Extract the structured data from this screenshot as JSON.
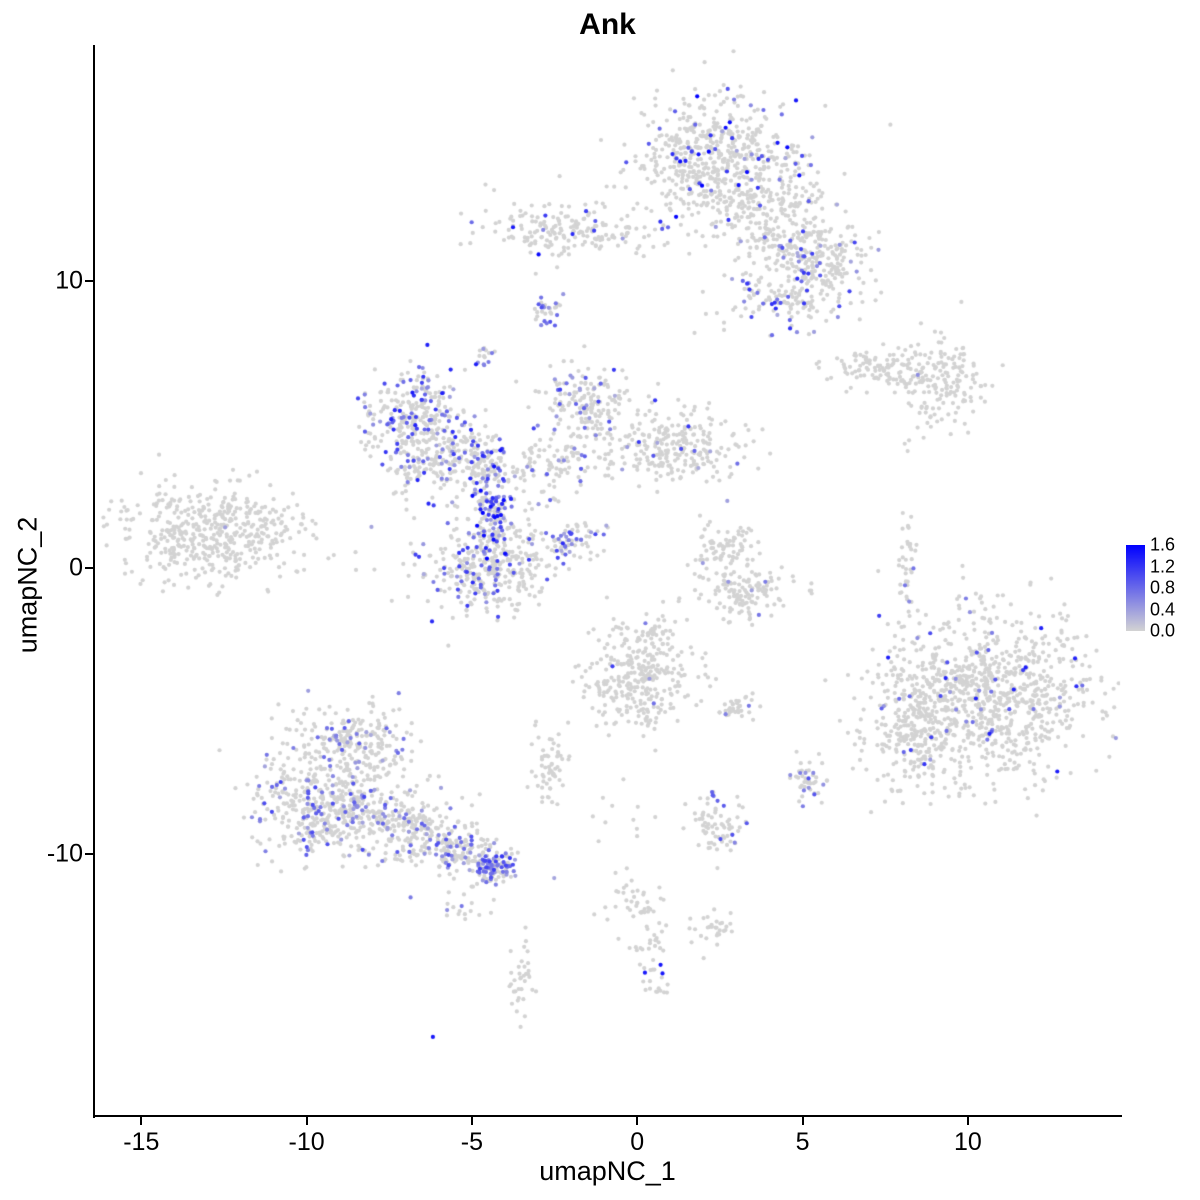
{
  "chart_data": {
    "type": "scatter",
    "title": "Ank",
    "xlabel": "umapNC_1",
    "ylabel": "umapNC_2",
    "xlim": [
      -16.4,
      14.6
    ],
    "ylim": [
      -19.1,
      18.25
    ],
    "xticks": [
      -15,
      -10,
      -5,
      0,
      5,
      10
    ],
    "yticks": [
      -10,
      0,
      10
    ],
    "grid": false,
    "legend_position": "right",
    "color_scale": {
      "low": "#D3D3D3",
      "high": "#0000FF",
      "range": [
        0,
        1.6
      ],
      "ticks": [
        {
          "label": "1.6",
          "value": 1.6
        },
        {
          "label": "1.2",
          "value": 1.2
        },
        {
          "label": "0.8",
          "value": 0.8
        },
        {
          "label": "0.4",
          "value": 0.4
        },
        {
          "label": "0.0",
          "value": 0.0
        }
      ]
    },
    "clusters": [
      {
        "name": "top-main",
        "cx": 2.3,
        "cy": 14.3,
        "sx": 1.25,
        "sy": 1.1,
        "n": 550,
        "frac": 0.09,
        "vmin": 0.3,
        "vmax": 1.6
      },
      {
        "name": "top-arm",
        "cx": 4.2,
        "cy": 12.2,
        "sx": 1.3,
        "sy": 0.9,
        "n": 300,
        "frac": 0.07,
        "vmin": 0.3,
        "vmax": 1.2,
        "rot": -30
      },
      {
        "name": "top-arm2",
        "cx": 5.4,
        "cy": 10.6,
        "sx": 0.9,
        "sy": 0.6,
        "n": 160,
        "frac": 0.12,
        "vmin": 0.3,
        "vmax": 1.2
      },
      {
        "name": "top-lower",
        "cx": 4.6,
        "cy": 9.4,
        "sx": 1.1,
        "sy": 0.5,
        "n": 130,
        "frac": 0.15,
        "vmin": 0.3,
        "vmax": 1.3
      },
      {
        "name": "topleft-small",
        "cx": -2.3,
        "cy": 11.9,
        "sx": 1.1,
        "sy": 0.55,
        "n": 160,
        "frac": 0.05,
        "vmin": 0.5,
        "vmax": 1.6
      },
      {
        "name": "trail-top",
        "cx": -0.3,
        "cy": 11.6,
        "sx": 0.9,
        "sy": 0.3,
        "n": 40,
        "frac": 0.02,
        "vmin": 0.3,
        "vmax": 0.8
      },
      {
        "name": "dot-c",
        "cx": -2.75,
        "cy": 9.0,
        "sx": 0.22,
        "sy": 0.25,
        "n": 30,
        "frac": 0.5,
        "vmin": 0.4,
        "vmax": 1.0
      },
      {
        "name": "dot-d",
        "cx": -4.6,
        "cy": 7.4,
        "sx": 0.18,
        "sy": 0.22,
        "n": 14,
        "frac": 0.4,
        "vmin": 0.4,
        "vmax": 0.9
      },
      {
        "name": "right-elong1",
        "cx": 7.6,
        "cy": 6.9,
        "sx": 1.0,
        "sy": 0.35,
        "n": 130,
        "frac": 0.008,
        "vmin": 0.3,
        "vmax": 0.6,
        "rot": -8
      },
      {
        "name": "right-elong2",
        "cx": 9.3,
        "cy": 6.4,
        "sx": 0.65,
        "sy": 0.75,
        "n": 140,
        "frac": 0.008,
        "vmin": 0.3,
        "vmax": 0.6
      },
      {
        "name": "mid-f1",
        "cx": -6.8,
        "cy": 5.5,
        "sx": 0.8,
        "sy": 0.75,
        "n": 220,
        "frac": 0.22,
        "vmin": 0.3,
        "vmax": 1.4
      },
      {
        "name": "mid-f2",
        "cx": -6.3,
        "cy": 3.9,
        "sx": 0.8,
        "sy": 0.7,
        "n": 200,
        "frac": 0.15,
        "vmin": 0.3,
        "vmax": 1.2
      },
      {
        "name": "mid-f3",
        "cx": -4.9,
        "cy": 3.8,
        "sx": 0.55,
        "sy": 0.5,
        "n": 110,
        "frac": 0.3,
        "vmin": 0.3,
        "vmax": 1.3
      },
      {
        "name": "mid-streak",
        "cx": -4.45,
        "cy": 1.9,
        "sx": 0.28,
        "sy": 0.9,
        "n": 160,
        "frac": 0.5,
        "vmin": 0.4,
        "vmax": 1.6
      },
      {
        "name": "mid-blob",
        "cx": -4.4,
        "cy": 0.1,
        "sx": 1.1,
        "sy": 0.85,
        "n": 380,
        "frac": 0.18,
        "vmin": 0.3,
        "vmax": 1.3
      },
      {
        "name": "mid-f6",
        "cx": -1.5,
        "cy": 5.7,
        "sx": 0.75,
        "sy": 0.7,
        "n": 170,
        "frac": 0.12,
        "vmin": 0.3,
        "vmax": 1.2
      },
      {
        "name": "mid-bridge",
        "cx": -2.4,
        "cy": 3.6,
        "sx": 0.9,
        "sy": 0.5,
        "n": 110,
        "frac": 0.12,
        "vmin": 0.3,
        "vmax": 1.0,
        "rot": 20
      },
      {
        "name": "mid-f8",
        "cx": 1.2,
        "cy": 4.2,
        "sx": 1.1,
        "sy": 0.65,
        "n": 260,
        "frac": 0.05,
        "vmin": 0.3,
        "vmax": 1.2
      },
      {
        "name": "mid-streak2",
        "cx": -2.0,
        "cy": 1.0,
        "sx": 0.45,
        "sy": 0.3,
        "n": 55,
        "frac": 0.4,
        "vmin": 0.3,
        "vmax": 1.1,
        "rot": 40
      },
      {
        "name": "left-gray",
        "cx": -12.9,
        "cy": 1.2,
        "sx": 1.5,
        "sy": 0.85,
        "n": 480,
        "frac": 0.004,
        "vmin": 0.3,
        "vmax": 0.6
      },
      {
        "name": "center-cresc1",
        "cx": 2.8,
        "cy": 0.7,
        "sx": 0.55,
        "sy": 0.45,
        "n": 80,
        "frac": 0.01,
        "vmin": 0.3,
        "vmax": 0.6
      },
      {
        "name": "center-cresc2",
        "cx": 3.4,
        "cy": -0.9,
        "sx": 0.75,
        "sy": 0.5,
        "n": 130,
        "frac": 0.02,
        "vmin": 0.3,
        "vmax": 0.7
      },
      {
        "name": "vert-small",
        "cx": 8.15,
        "cy": -0.1,
        "sx": 0.13,
        "sy": 0.85,
        "n": 40,
        "frac": 0.05,
        "vmin": 0.4,
        "vmax": 0.9
      },
      {
        "name": "right-big",
        "cx": 10.6,
        "cy": -4.5,
        "sx": 1.55,
        "sy": 1.45,
        "n": 950,
        "frac": 0.045,
        "vmin": 0.4,
        "vmax": 1.5
      },
      {
        "name": "right-big-lobe",
        "cx": 8.4,
        "cy": -5.6,
        "sx": 0.7,
        "sy": 1.1,
        "n": 220,
        "frac": 0.02,
        "vmin": 0.3,
        "vmax": 0.9
      },
      {
        "name": "center-mid",
        "cx": 0.0,
        "cy": -3.9,
        "sx": 0.85,
        "sy": 0.95,
        "n": 300,
        "frac": 0.015,
        "vmin": 0.4,
        "vmax": 1.2
      },
      {
        "name": "center-mid-tail",
        "cx": 0.6,
        "cy": -2.5,
        "sx": 0.3,
        "sy": 0.5,
        "n": 40,
        "frac": 0.02,
        "vmin": 0.3,
        "vmax": 0.7
      },
      {
        "name": "pair-small",
        "cx": 2.9,
        "cy": -4.9,
        "sx": 0.3,
        "sy": 0.25,
        "n": 35,
        "frac": 0.08,
        "vmin": 0.4,
        "vmax": 0.9
      },
      {
        "name": "bl-top",
        "cx": -8.6,
        "cy": -6.1,
        "sx": 1.0,
        "sy": 0.6,
        "n": 240,
        "frac": 0.15,
        "vmin": 0.3,
        "vmax": 1.0
      },
      {
        "name": "bl-main",
        "cx": -9.4,
        "cy": -8.4,
        "sx": 1.1,
        "sy": 0.85,
        "n": 480,
        "frac": 0.17,
        "vmin": 0.3,
        "vmax": 1.1
      },
      {
        "name": "bl-east",
        "cx": -6.6,
        "cy": -9.2,
        "sx": 1.0,
        "sy": 0.6,
        "n": 260,
        "frac": 0.12,
        "vmin": 0.3,
        "vmax": 1.0,
        "rot": -20
      },
      {
        "name": "bl-arm",
        "cx": -4.8,
        "cy": -10.2,
        "sx": 0.7,
        "sy": 0.35,
        "n": 140,
        "frac": 0.3,
        "vmin": 0.3,
        "vmax": 1.1,
        "rot": -25
      },
      {
        "name": "bl-hotspot",
        "cx": -4.25,
        "cy": -10.4,
        "sx": 0.25,
        "sy": 0.2,
        "n": 50,
        "frac": 0.75,
        "vmin": 0.4,
        "vmax": 1.2
      },
      {
        "name": "bl-below",
        "cx": -5.3,
        "cy": -11.8,
        "sx": 0.5,
        "sy": 0.35,
        "n": 18,
        "frac": 0.05,
        "vmin": 0.3,
        "vmax": 0.8
      },
      {
        "name": "n-small",
        "cx": -2.6,
        "cy": -7.0,
        "sx": 0.3,
        "sy": 0.6,
        "n": 60,
        "frac": 0.01,
        "vmin": 0.3,
        "vmax": 0.6
      },
      {
        "name": "o-small",
        "cx": 5.1,
        "cy": -7.4,
        "sx": 0.25,
        "sy": 0.5,
        "n": 45,
        "frac": 0.25,
        "vmin": 0.4,
        "vmax": 1.0
      },
      {
        "name": "p-small",
        "cx": 2.4,
        "cy": -9.0,
        "sx": 0.5,
        "sy": 0.4,
        "n": 70,
        "frac": 0.04,
        "vmin": 0.4,
        "vmax": 1.0
      },
      {
        "name": "p-dot",
        "cx": 2.3,
        "cy": -7.9,
        "sx": 0.12,
        "sy": 0.12,
        "n": 6,
        "frac": 0.4,
        "vmin": 0.5,
        "vmax": 1.0
      },
      {
        "name": "trail-bottom",
        "cx": -0.2,
        "cy": -9.5,
        "sx": 0.6,
        "sy": 1.2,
        "n": 15,
        "frac": 0,
        "vmin": 0.3,
        "vmax": 0.6
      },
      {
        "name": "q1",
        "cx": 0.0,
        "cy": -11.8,
        "sx": 0.5,
        "sy": 0.4,
        "n": 35,
        "frac": 0,
        "vmin": 0.3,
        "vmax": 0.6
      },
      {
        "name": "q2",
        "cx": 0.35,
        "cy": -13.2,
        "sx": 0.35,
        "sy": 0.5,
        "n": 25,
        "frac": 0,
        "vmin": 0.3,
        "vmax": 0.6
      },
      {
        "name": "r-small",
        "cx": 2.3,
        "cy": -12.7,
        "sx": 0.4,
        "sy": 0.3,
        "n": 30,
        "frac": 0,
        "vmin": 0.3,
        "vmax": 0.6
      },
      {
        "name": "s-dot",
        "cx": 0.6,
        "cy": -14.4,
        "sx": 0.22,
        "sy": 0.22,
        "n": 18,
        "frac": 0.15,
        "vmin": 1.4,
        "vmax": 1.6
      },
      {
        "name": "t-vert",
        "cx": -3.5,
        "cy": -14.4,
        "sx": 0.2,
        "sy": 0.8,
        "n": 35,
        "frac": 0,
        "vmin": 0.3,
        "vmax": 0.6
      },
      {
        "name": "u-single",
        "cx": -6.1,
        "cy": -16.4,
        "sx": 0.05,
        "sy": 0.05,
        "n": 1,
        "frac": 1.0,
        "vmin": 1.4,
        "vmax": 1.6
      },
      {
        "name": "stray-right",
        "cx": 8.1,
        "cy": 4.3,
        "sx": 0.1,
        "sy": 0.1,
        "n": 2,
        "frac": 0,
        "vmin": 0.3,
        "vmax": 0.6
      }
    ]
  }
}
